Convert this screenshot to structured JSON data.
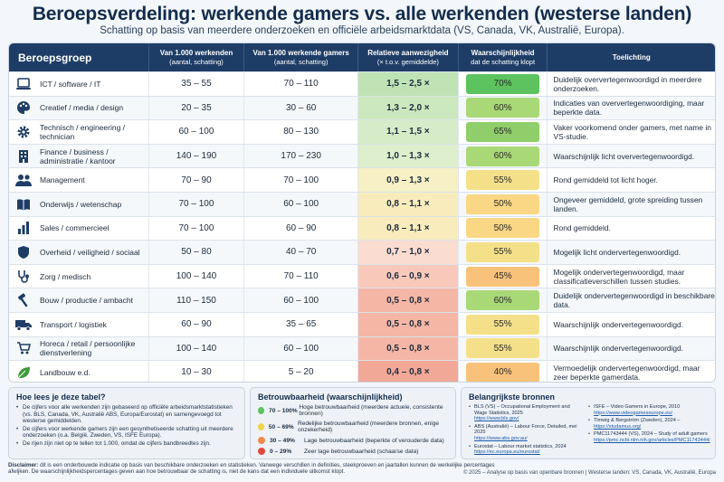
{
  "title": "Beroepsverdeling: werkende gamers vs. alle werkenden (westerse landen)",
  "subtitle": "Schatting op basis van meerdere onderzoeken en officiële arbeidsmarktdata (VS, Canada, VK, Australië, Europa).",
  "headers": {
    "group": "Beroepsgroep",
    "all_main": "Van 1.000 werkenden",
    "all_sub": "(aantal, schatting)",
    "gamers_main": "Van 1.000 werkende gamers",
    "gamers_sub": "(aantal, schatting)",
    "ratio_main": "Relatieve aanwezigheid",
    "ratio_sub": "(× t.o.v. gemiddelde)",
    "conf_main": "Waarschijnlijkheid",
    "conf_sub": "dat de schatting klopt",
    "note": "Toelichting"
  },
  "colors": {
    "header_bg": "#1e3d66",
    "high": "#5cc35e",
    "fair": "#d9e98a",
    "low": "#f9d784",
    "very_low": "#f0a48f"
  },
  "rows": [
    {
      "icon": "laptop-icon",
      "group": "ICT / software / IT",
      "all": "35 – 55",
      "gamers": "70 – 110",
      "ratio": "1,5 – 2,5 ×",
      "ratio_color": "#bfe3b5",
      "conf": "70%",
      "conf_color": "#5cc35e",
      "note": "Duidelijk oververtegenwoordigd in meerdere onderzoeken."
    },
    {
      "icon": "palette-icon",
      "group": "Creatief / media / design",
      "all": "20 – 35",
      "gamers": "30 – 60",
      "ratio": "1,3 – 2,0 ×",
      "ratio_color": "#cbe8bf",
      "conf": "60%",
      "conf_color": "#a9d876",
      "note": "Indicaties van oververtegenwoordiging, maar beperkte data."
    },
    {
      "icon": "gear-icon",
      "group": "Technisch / engineering / technician",
      "all": "60 – 100",
      "gamers": "80 – 130",
      "ratio": "1,1 – 1,5 ×",
      "ratio_color": "#d6ecc8",
      "conf": "65%",
      "conf_color": "#8fce6a",
      "note": "Vaker voorkomend onder gamers, met name in VS-studie."
    },
    {
      "icon": "building-icon",
      "group": "Finance / business / administratie / kantoor",
      "all": "140 – 190",
      "gamers": "170 – 230",
      "ratio": "1,0 – 1,3 ×",
      "ratio_color": "#ddefcc",
      "conf": "60%",
      "conf_color": "#a9d876",
      "note": "Waarschijnlijk licht oververtegenwoordigd."
    },
    {
      "icon": "people-icon",
      "group": "Management",
      "all": "70 – 90",
      "gamers": "70 – 100",
      "ratio": "0,9 – 1,3 ×",
      "ratio_color": "#f6f0c4",
      "conf": "55%",
      "conf_color": "#f5e08a",
      "note": "Rond gemiddeld tot licht hoger."
    },
    {
      "icon": "book-icon",
      "group": "Onderwijs / wetenschap",
      "all": "70 – 100",
      "gamers": "60 – 100",
      "ratio": "0,8 – 1,1 ×",
      "ratio_color": "#f9ecbc",
      "conf": "50%",
      "conf_color": "#f9d784",
      "note": "Ongeveer gemiddeld, grote spreiding tussen landen."
    },
    {
      "icon": "chart-icon",
      "group": "Sales / commercieel",
      "all": "70 – 100",
      "gamers": "60 – 90",
      "ratio": "0,8 – 1,1 ×",
      "ratio_color": "#f9ecbc",
      "conf": "50%",
      "conf_color": "#f9d784",
      "note": "Rond gemiddeld."
    },
    {
      "icon": "shield-icon",
      "group": "Overheid / veiligheid / sociaal",
      "all": "50 – 80",
      "gamers": "40 – 70",
      "ratio": "0,7 – 1,0 ×",
      "ratio_color": "#fbdcd0",
      "conf": "55%",
      "conf_color": "#f5e08a",
      "note": "Mogelijk licht ondervertegenwoordigd."
    },
    {
      "icon": "stethoscope-icon",
      "group": "Zorg / medisch",
      "all": "100 – 140",
      "gamers": "70 – 110",
      "ratio": "0,6 – 0,9 ×",
      "ratio_color": "#f8c9bb",
      "conf": "45%",
      "conf_color": "#f9c27a",
      "note": "Mogelijk ondervertegenwoordigd, maar classificatieverschillen tussen studies."
    },
    {
      "icon": "hammer-icon",
      "group": "Bouw / productie / ambacht",
      "all": "110 – 150",
      "gamers": "60 – 100",
      "ratio": "0,5 – 0,8 ×",
      "ratio_color": "#f5b6a6",
      "conf": "60%",
      "conf_color": "#a9d876",
      "note": "Duidelijk ondervertegenwoordigd in beschikbare data."
    },
    {
      "icon": "truck-icon",
      "group": "Transport / logistiek",
      "all": "60 – 90",
      "gamers": "35 – 65",
      "ratio": "0,5 – 0,8 ×",
      "ratio_color": "#f5b6a6",
      "conf": "55%",
      "conf_color": "#f5e08a",
      "note": "Waarschijnlijk ondervertegenwoordigd."
    },
    {
      "icon": "cart-icon",
      "group": "Horeca / retail / persoonlijke dienstverlening",
      "all": "100 – 140",
      "gamers": "60 – 100",
      "ratio": "0,5 – 0,8 ×",
      "ratio_color": "#f5b6a6",
      "conf": "55%",
      "conf_color": "#f5e08a",
      "note": "Waarschijnlijk ondervertegenwoordigd."
    },
    {
      "icon": "leaf-icon",
      "group": "Landbouw e.d.",
      "all": "10 – 30",
      "gamers": "5 – 20",
      "ratio": "0,4 – 0,8 ×",
      "ratio_color": "#f2a897",
      "conf": "40%",
      "conf_color": "#f9c27a",
      "note": "Vermoedelijk ondervertegenwoordigd, maar zeer beperkte gamerdata."
    }
  ],
  "howto": {
    "title": "Hoe lees je deze tabel?",
    "items": [
      "De cijfers voor alle werkenden zijn gebaseerd op officiële arbeidsmarktstatistieken (vs. BLS, Canada, VK, Australië ABS, Europa/Eurostat) en samengevoegd tot westerse gemiddelden.",
      "De cijfers voor werkende gamers zijn een gesynthetiseerde schatting uit meerdere onderzoeken (o.a. België, Zweden, VS, ISFE Europa).",
      "De rijen zijn niet op te tellen tot 1.000, omdat de cijfers bandbreedtes zijn."
    ]
  },
  "reliability": {
    "title": "Betrouwbaarheid (waarschijnlijkheid)",
    "items": [
      {
        "range": "70 – 100%",
        "text": "Hoge betrouwbaarheid (meerdere actuele, consistente bronnen)",
        "color": "#5cc35e"
      },
      {
        "range": "50 – 69%",
        "text": "Redelijke betrouwbaarheid (meerdere bronnen, enige onzekerheid)",
        "color": "#f2d24a"
      },
      {
        "range": "30 – 49%",
        "text": "Lage betrouwbaarheid (beperkte of verouderde data)",
        "color": "#f08a4b"
      },
      {
        "range": "0 – 29%",
        "text": "Zeer lage betrouwbaarheid (schaarse data)",
        "color": "#e04a3f"
      }
    ]
  },
  "sources": {
    "title": "Belangrijkste bronnen",
    "left": [
      {
        "text": "BLS (VS) – Occupational Employment and Wage Statistics, 2025",
        "url": "https://www.bls.gov/"
      },
      {
        "text": "ABS (Australië) – Labour Force, Detailed, mei 2025",
        "url": "https://www.abs.gov.au/"
      },
      {
        "text": "Eurostat – Labour market statistics, 2024",
        "url": "https://ec.europa.eu/eurostat/"
      }
    ],
    "right": [
      {
        "text": "ISFE – Video Gamers in Europe, 2010",
        "url": "https://www.videogameseurope.eu/"
      },
      {
        "text": "Timwig & Bergström (Zweden), 2024 –",
        "url": "https://studamus.org/"
      },
      {
        "text": "PMC11743444 (VS), 2024 – Study of adult gamers",
        "url": "https://pmc.ncbi.nlm.nih.gov/articles/PMC11743444/"
      }
    ]
  },
  "disclaimer_label": "Disclaimer:",
  "disclaimer": "dit is een onderbouwde indicatie op basis van beschikbare onderzoeken en statistieken. Vanwege verschillen in definities, steekproeven en jaartallen kunnen de werkelijke percentages afwijken. De waarschijnlijkheidspercentages geven aan hoe betrouwbaar de schatting is, niet de kans dat een individuele uitkomst klopt.",
  "footer": "© 2025 – Analyse op basis van openbare bronnen  |  Westerse landen: VS, Canada, VK, Australië, Europa"
}
